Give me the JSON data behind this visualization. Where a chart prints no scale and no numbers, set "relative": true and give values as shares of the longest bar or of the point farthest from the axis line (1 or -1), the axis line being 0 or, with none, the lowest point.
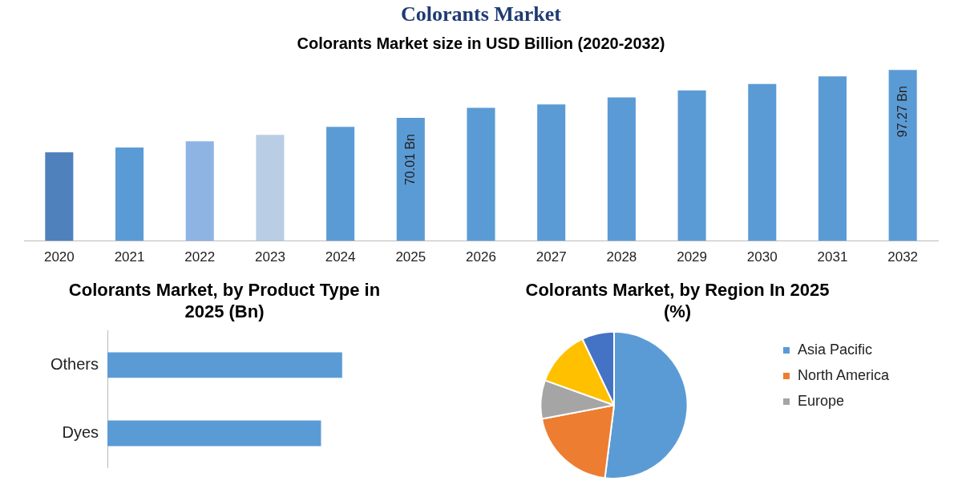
{
  "chart_data": [
    {
      "type": "bar",
      "title": "Colorants Market",
      "subtitle": "Colorants Market size in USD Billion (2020-2032)",
      "categories": [
        "2020",
        "2021",
        "2022",
        "2023",
        "2024",
        "2025",
        "2026",
        "2027",
        "2028",
        "2029",
        "2030",
        "2031",
        "2032"
      ],
      "values": [
        50.4,
        53.2,
        56.7,
        60.3,
        64.9,
        70.01,
        75.7,
        77.7,
        81.6,
        85.6,
        89.3,
        93.6,
        97.27
      ],
      "colors": [
        "#4f81bd",
        "#5b9bd5",
        "#8eb4e3",
        "#b9cde5",
        "#5b9bd5",
        "#5b9bd5",
        "#5b9bd5",
        "#5b9bd5",
        "#5b9bd5",
        "#5b9bd5",
        "#5b9bd5",
        "#5b9bd5",
        "#5b9bd5"
      ],
      "value_labels": [
        null,
        null,
        null,
        null,
        null,
        "70.01 Bn",
        null,
        null,
        null,
        null,
        null,
        null,
        "97.27 Bn"
      ],
      "tick_labels": "x"
    },
    {
      "type": "bar",
      "orientation": "horizontal",
      "relative": true,
      "title": "Colorants Market, by Product Type in 2025 (Bn)",
      "categories": [
        "Others",
        "Dyes"
      ],
      "values": [
        1,
        0.91
      ],
      "color": "#5b9bd5"
    },
    {
      "type": "pie",
      "title": "Colorants Market, by Region In 2025 (%)",
      "categories": [
        "Asia Pacific",
        "North America",
        "Europe",
        null,
        null
      ],
      "values": [
        52,
        20,
        8.5,
        12.4,
        7.1
      ],
      "colors": [
        "#5b9bd5",
        "#ed7d31",
        "#a5a5a5",
        "#ffc000",
        "#4472c4"
      ],
      "legend": "right"
    }
  ]
}
